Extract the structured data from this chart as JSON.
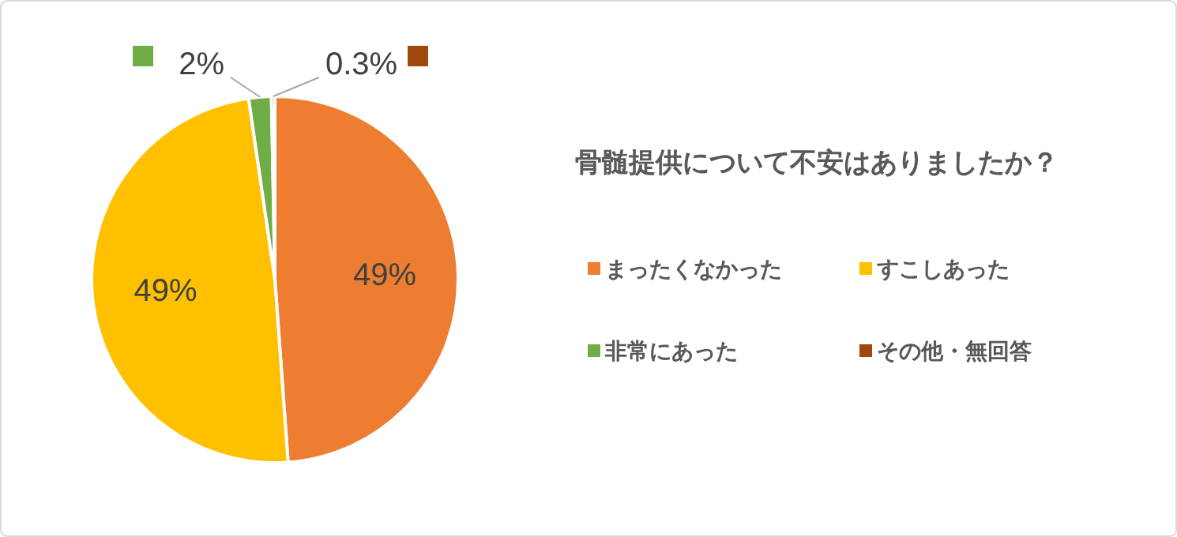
{
  "chart_data": {
    "type": "pie",
    "title": "骨髄提供について不安はありましたか？",
    "categories": [
      "まったくなかった",
      "すこしあった",
      "非常にあった",
      "その他・無回答"
    ],
    "values": [
      49,
      49,
      2,
      0.3
    ],
    "colors": [
      "#ed7d31",
      "#ffc000",
      "#70ad47",
      "#9e480e"
    ],
    "value_labels": [
      "49%",
      "49%",
      "2%",
      "0.3%"
    ],
    "legend": "right"
  }
}
